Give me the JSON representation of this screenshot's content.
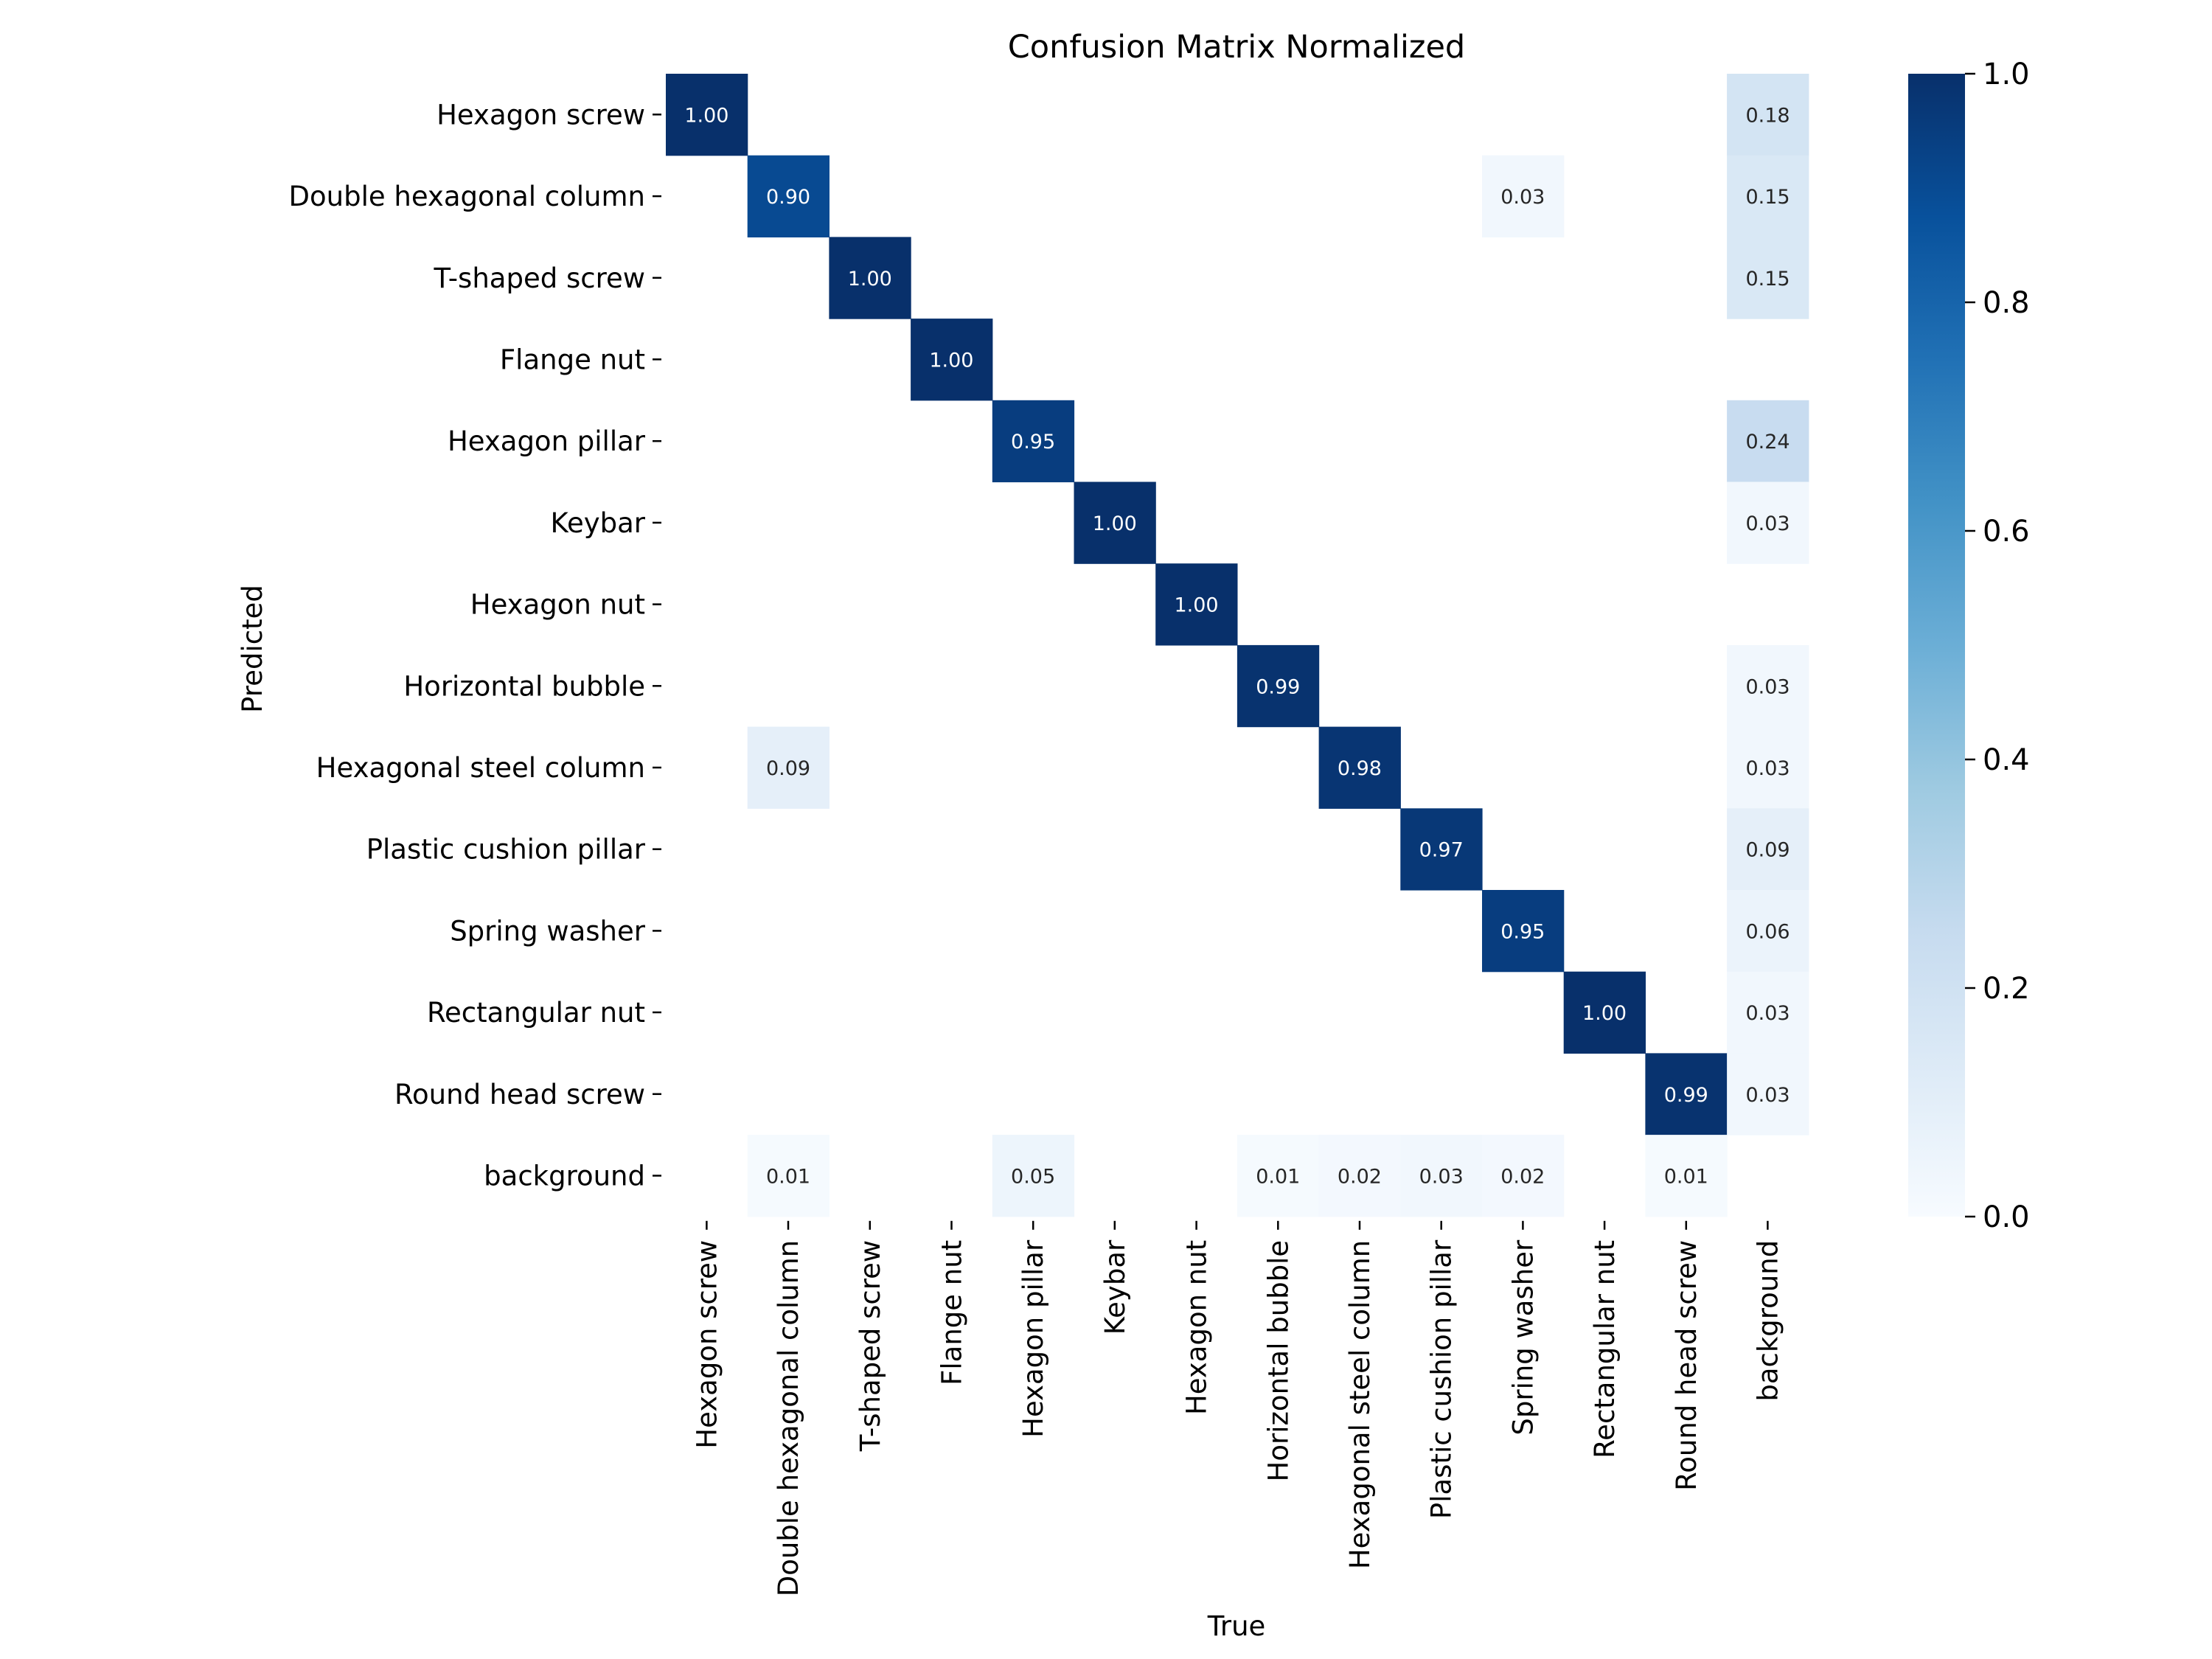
{
  "chart_data": {
    "type": "heatmap",
    "title": "Confusion Matrix Normalized",
    "xlabel": "True",
    "ylabel": "Predicted",
    "x_categories": [
      "Hexagon screw",
      "Double hexagonal column",
      "T-shaped screw",
      "Flange nut",
      "Hexagon pillar",
      "Keybar",
      "Hexagon nut",
      "Horizontal bubble",
      "Hexagonal steel column",
      "Plastic cushion pillar",
      "Spring washer",
      "Rectangular nut",
      "Round head screw",
      "background"
    ],
    "y_categories": [
      "Hexagon screw",
      "Double hexagonal column",
      "T-shaped screw",
      "Flange nut",
      "Hexagon pillar",
      "Keybar",
      "Hexagon nut",
      "Horizontal bubble",
      "Hexagonal steel column",
      "Plastic cushion pillar",
      "Spring washer",
      "Rectangular nut",
      "Round head screw",
      "background"
    ],
    "values": [
      [
        1.0,
        null,
        null,
        null,
        null,
        null,
        null,
        null,
        null,
        null,
        null,
        null,
        null,
        0.18
      ],
      [
        null,
        0.9,
        null,
        null,
        null,
        null,
        null,
        null,
        null,
        null,
        0.03,
        null,
        null,
        0.15
      ],
      [
        null,
        null,
        1.0,
        null,
        null,
        null,
        null,
        null,
        null,
        null,
        null,
        null,
        null,
        0.15
      ],
      [
        null,
        null,
        null,
        1.0,
        null,
        null,
        null,
        null,
        null,
        null,
        null,
        null,
        null,
        null
      ],
      [
        null,
        null,
        null,
        null,
        0.95,
        null,
        null,
        null,
        null,
        null,
        null,
        null,
        null,
        0.24
      ],
      [
        null,
        null,
        null,
        null,
        null,
        1.0,
        null,
        null,
        null,
        null,
        null,
        null,
        null,
        0.03
      ],
      [
        null,
        null,
        null,
        null,
        null,
        null,
        1.0,
        null,
        null,
        null,
        null,
        null,
        null,
        null
      ],
      [
        null,
        null,
        null,
        null,
        null,
        null,
        null,
        0.99,
        null,
        null,
        null,
        null,
        null,
        0.03
      ],
      [
        null,
        0.09,
        null,
        null,
        null,
        null,
        null,
        null,
        0.98,
        null,
        null,
        null,
        null,
        0.03
      ],
      [
        null,
        null,
        null,
        null,
        null,
        null,
        null,
        null,
        null,
        0.97,
        null,
        null,
        null,
        0.09
      ],
      [
        null,
        null,
        null,
        null,
        null,
        null,
        null,
        null,
        null,
        null,
        0.95,
        null,
        null,
        0.06
      ],
      [
        null,
        null,
        null,
        null,
        null,
        null,
        null,
        null,
        null,
        null,
        null,
        1.0,
        null,
        0.03
      ],
      [
        null,
        null,
        null,
        null,
        null,
        null,
        null,
        null,
        null,
        null,
        null,
        null,
        0.99,
        0.03
      ],
      [
        null,
        0.01,
        null,
        null,
        0.05,
        null,
        null,
        0.01,
        0.02,
        0.03,
        0.02,
        null,
        0.01,
        null
      ]
    ],
    "value_format": "2 decimals",
    "colormap": "Blues",
    "vmin": 0.0,
    "vmax": 1.0,
    "colorbar_ticks": [
      "0.0",
      "0.2",
      "0.4",
      "0.6",
      "0.8",
      "1.0"
    ],
    "colorbar_tick_values": [
      0.0,
      0.2,
      0.4,
      0.6,
      0.8,
      1.0
    ]
  }
}
